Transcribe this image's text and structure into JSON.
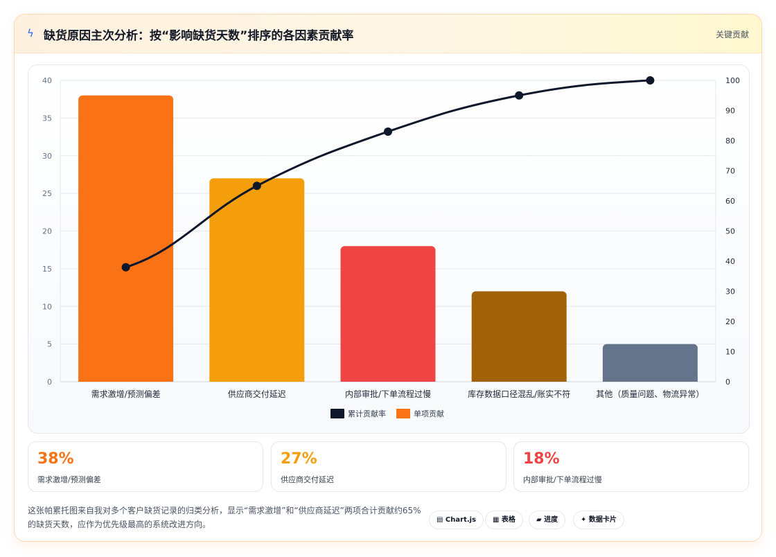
{
  "header": {
    "title": "缺货原因主次分析：按“影响缺货天数”排序的各因素贡献率",
    "tag": "关键贡献",
    "icon": "lightning-bolt-icon"
  },
  "chart_data": {
    "type": "bar",
    "categories": [
      "需求激增/预测偏差",
      "供应商交付延迟",
      "内部审批/下单流程过慢",
      "库存数据口径混乱/账实不符",
      "其他（质量问题、物流异常）"
    ],
    "series": [
      {
        "name": "单项贡献",
        "type": "bar",
        "axis": "left",
        "values": [
          38,
          27,
          18,
          12,
          5
        ],
        "colors": [
          "#f97316",
          "#f59e0b",
          "#ef4444",
          "#a16207",
          "#64748b"
        ]
      },
      {
        "name": "累计贡献率",
        "type": "line",
        "axis": "right",
        "values": [
          38,
          65,
          83,
          95,
          100
        ],
        "color": "#0f172a"
      }
    ],
    "ylim": [
      0,
      40
    ],
    "yticks": [
      0,
      5,
      10,
      15,
      20,
      25,
      30,
      35,
      40
    ],
    "y2lim": [
      0,
      100
    ],
    "y2ticks": [
      0,
      10,
      20,
      30,
      40,
      50,
      60,
      70,
      80,
      90,
      100
    ],
    "grid": true,
    "legend_position": "bottom",
    "legend": [
      "累计贡献率",
      "单项贡献"
    ]
  },
  "stats": [
    {
      "value": "38%",
      "label": "需求激增/预测偏差",
      "color": "#f97316"
    },
    {
      "value": "27%",
      "label": "供应商交付延迟",
      "color": "#f59e0b"
    },
    {
      "value": "18%",
      "label": "内部审批/下单流程过慢",
      "color": "#ef4444"
    }
  ],
  "footer": {
    "text": "这张帕累托图来自我对多个客户缺货记录的归类分析，显示“需求激增”和“供应商延迟”两项合计贡献约65%的缺货天数，应作为优先级最高的系统改进方向。",
    "chips": [
      "▤ Chart.js",
      "▦ 表格",
      "▰ 进度",
      "✦ 数据卡片"
    ]
  }
}
